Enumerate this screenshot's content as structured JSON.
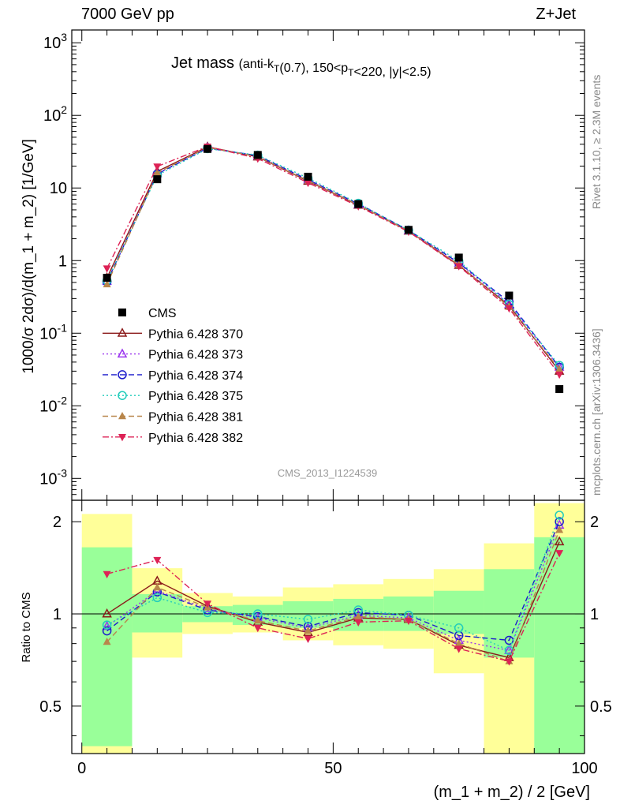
{
  "header": {
    "energy_label": "7000 GeV pp",
    "process_label": "Z+Jet"
  },
  "side_labels": {
    "rivet": "Rivet 3.1.10, ≥ 2.3M events",
    "source": "mcplots.cern.ch [arXiv:1306.3436]"
  },
  "chart_data": [
    {
      "type": "line",
      "title_main": "Jet mass",
      "title_sub": "(anti-k_T(0.7), 150<p_T<220, |y|<2.5)",
      "watermark": "CMS_2013_I1224539",
      "ylabel": "1000/σ 2dσ)/d(m_1 + m_2) [1/GeV]",
      "yscale": "log",
      "ylim": [
        0.0005,
        1500
      ],
      "xlim": [
        -2,
        100
      ],
      "yticks": [
        "10^-3",
        "10^-2",
        "10^-1",
        "1",
        "10",
        "10^2",
        "10^3"
      ],
      "legend_position": "left-middle",
      "x": [
        5,
        15,
        25,
        35,
        45,
        55,
        65,
        75,
        85,
        95
      ],
      "data": {
        "name": "CMS",
        "color": "#000000",
        "marker": "square",
        "values": [
          0.58,
          13.2,
          34.5,
          28.5,
          14.3,
          6.0,
          2.65,
          1.1,
          0.33,
          0.017
        ]
      },
      "series": [
        {
          "name": "Pythia 6.428 370",
          "color": "#8b1a1a",
          "dash": "solid",
          "marker": "triangle-open",
          "values": [
            0.58,
            16.9,
            36.8,
            26.8,
            12.4,
            5.8,
            2.55,
            0.86,
            0.24,
            0.03
          ]
        },
        {
          "name": "Pythia 6.428 373",
          "color": "#9933ee",
          "dash": "dot",
          "marker": "triangle-open",
          "values": [
            0.52,
            15.8,
            35.9,
            27.6,
            12.9,
            5.9,
            2.58,
            0.92,
            0.25,
            0.034
          ]
        },
        {
          "name": "Pythia 6.428 374",
          "color": "#1c1ccc",
          "dash": "dash",
          "marker": "circle-open",
          "values": [
            0.51,
            15.6,
            35.4,
            27.9,
            13.0,
            6.05,
            2.62,
            0.93,
            0.27,
            0.034
          ]
        },
        {
          "name": "Pythia 6.428 375",
          "color": "#22ccbb",
          "dash": "dot",
          "marker": "circle-open",
          "values": [
            0.53,
            14.9,
            34.8,
            28.3,
            13.7,
            6.15,
            2.62,
            0.99,
            0.25,
            0.036
          ]
        },
        {
          "name": "Pythia 6.428 381",
          "color": "#b8864b",
          "dash": "dash",
          "marker": "triangle",
          "values": [
            0.47,
            16.1,
            36.3,
            27.0,
            12.6,
            5.85,
            2.55,
            0.88,
            0.23,
            0.032
          ]
        },
        {
          "name": "Pythia 6.428 382",
          "color": "#dd2255",
          "dash": "dashdot",
          "marker": "triangle-down",
          "values": [
            0.78,
            19.8,
            37.2,
            25.5,
            11.8,
            5.6,
            2.5,
            0.84,
            0.22,
            0.027
          ]
        }
      ]
    },
    {
      "type": "line",
      "ylabel": "Ratio to CMS",
      "xlabel": "(m_1 + m_2) / 2 [GeV]",
      "yscale": "log",
      "ylim": [
        0.35,
        2.35
      ],
      "xlim": [
        -2,
        100
      ],
      "yticks": [
        "0.5",
        "1",
        "2"
      ],
      "xticks": [
        "0",
        "50",
        "100"
      ],
      "reference_line": 1,
      "bands": [
        {
          "x": [
            0,
            10
          ],
          "green": [
            0.37,
            1.65
          ],
          "yellow": [
            0.33,
            2.12
          ]
        },
        {
          "x": [
            10,
            20
          ],
          "green": [
            0.87,
            1.16
          ],
          "yellow": [
            0.72,
            1.41
          ]
        },
        {
          "x": [
            20,
            30
          ],
          "green": [
            0.94,
            1.06
          ],
          "yellow": [
            0.86,
            1.17
          ]
        },
        {
          "x": [
            30,
            40
          ],
          "green": [
            0.92,
            1.07
          ],
          "yellow": [
            0.87,
            1.14
          ]
        },
        {
          "x": [
            40,
            50
          ],
          "green": [
            0.9,
            1.1
          ],
          "yellow": [
            0.82,
            1.22
          ]
        },
        {
          "x": [
            50,
            60
          ],
          "green": [
            0.88,
            1.12
          ],
          "yellow": [
            0.79,
            1.25
          ]
        },
        {
          "x": [
            60,
            70
          ],
          "green": [
            0.88,
            1.14
          ],
          "yellow": [
            0.77,
            1.3
          ]
        },
        {
          "x": [
            70,
            80
          ],
          "green": [
            0.86,
            1.19
          ],
          "yellow": [
            0.64,
            1.4
          ]
        },
        {
          "x": [
            80,
            90
          ],
          "green": [
            0.72,
            1.4
          ],
          "yellow": [
            0.33,
            1.7
          ]
        },
        {
          "x": [
            90,
            100
          ],
          "green": [
            0.33,
            1.78
          ],
          "yellow": [
            0.33,
            2.3
          ]
        }
      ],
      "x": [
        5,
        15,
        25,
        35,
        45,
        55,
        65,
        75,
        85,
        95
      ],
      "series": [
        {
          "name": "Pythia 6.428 370",
          "values": [
            1.0,
            1.28,
            1.06,
            0.94,
            0.87,
            0.97,
            0.96,
            0.79,
            0.72,
            1.72
          ]
        },
        {
          "name": "Pythia 6.428 373",
          "values": [
            0.91,
            1.19,
            1.04,
            0.97,
            0.9,
            0.99,
            0.97,
            0.82,
            0.76,
            1.95
          ]
        },
        {
          "name": "Pythia 6.428 374",
          "values": [
            0.88,
            1.18,
            1.03,
            0.98,
            0.91,
            1.01,
            0.99,
            0.85,
            0.82,
            2.0
          ]
        },
        {
          "name": "Pythia 6.428 375",
          "values": [
            0.92,
            1.13,
            1.01,
            1.0,
            0.96,
            1.03,
            0.99,
            0.9,
            0.76,
            2.1
          ]
        },
        {
          "name": "Pythia 6.428 381",
          "values": [
            0.81,
            1.22,
            1.05,
            0.95,
            0.88,
            0.98,
            0.96,
            0.8,
            0.7,
            1.88
          ]
        },
        {
          "name": "Pythia 6.428 382",
          "values": [
            1.35,
            1.5,
            1.08,
            0.9,
            0.83,
            0.94,
            0.95,
            0.77,
            0.7,
            1.58
          ]
        }
      ]
    }
  ]
}
